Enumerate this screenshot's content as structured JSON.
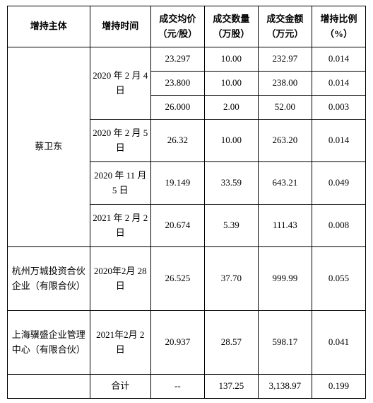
{
  "headers": {
    "subject": "增持主体",
    "time": "增持时间",
    "price": "成交均价（元/股）",
    "qty": "成交数量（万股）",
    "amount": "成交金额（万元）",
    "ratio": "增持比例（%）"
  },
  "group1": {
    "subject": "蔡卫东",
    "time1": "2020 年 2 月 4 日",
    "time2": "2020 年 2 月 5 日",
    "time3": "2020 年 11 月 5 日",
    "time4": "2021 年 2 月 2 日",
    "rows": [
      {
        "price": "23.297",
        "qty": "10.00",
        "amt": "232.97",
        "ratio": "0.014"
      },
      {
        "price": "23.800",
        "qty": "10.00",
        "amt": "238.00",
        "ratio": "0.014"
      },
      {
        "price": "26.000",
        "qty": "2.00",
        "amt": "52.00",
        "ratio": "0.003"
      },
      {
        "price": "26.32",
        "qty": "10.00",
        "amt": "263.20",
        "ratio": "0.014"
      },
      {
        "price": "19.149",
        "qty": "33.59",
        "amt": "643.21",
        "ratio": "0.049"
      },
      {
        "price": "20.674",
        "qty": "5.39",
        "amt": "111.43",
        "ratio": "0.008"
      }
    ]
  },
  "group2": {
    "subject": "杭州万城投资合伙企业（有限合伙）",
    "time": "2020年2月 28日",
    "price": "26.525",
    "qty": "37.70",
    "amt": "999.99",
    "ratio": "0.055"
  },
  "group3": {
    "subject": "上海骥盛企业管理中心（有限合伙）",
    "time": "2021年2月 2日",
    "price": "20.937",
    "qty": "28.57",
    "amt": "598.17",
    "ratio": "0.041"
  },
  "total": {
    "label": "合计",
    "price": "--",
    "qty": "137.25",
    "amt": "3,138.97",
    "ratio": "0.199"
  }
}
